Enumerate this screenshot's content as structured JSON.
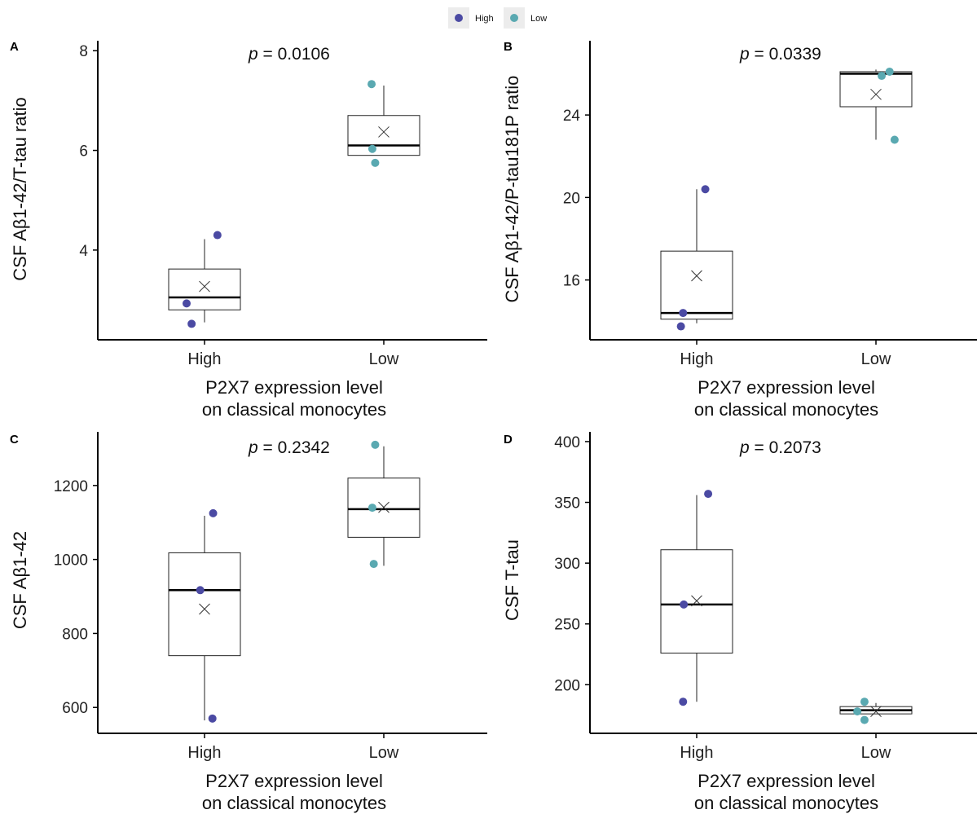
{
  "legend": {
    "entries": [
      {
        "label": "High",
        "color": "#4b4aa3"
      },
      {
        "label": "Low",
        "color": "#5aa9b1"
      }
    ]
  },
  "chart_data": [
    {
      "panel": "A",
      "type": "box",
      "categories": [
        "High",
        "Low"
      ],
      "xlabel": [
        "P2X7 expression level",
        "on classical monocytes"
      ],
      "ylabel": "CSF Aβ1-42/T-tau ratio",
      "p_label": "0.0106",
      "ylim": [
        2.2,
        8.2
      ],
      "yticks": [
        4,
        6,
        8
      ],
      "boxes": [
        {
          "category": "High",
          "whisker_low": 2.55,
          "q1": 2.8,
          "median": 3.05,
          "q3": 3.62,
          "whisker_high": 4.22,
          "mean": 3.27
        },
        {
          "category": "Low",
          "whisker_low": 5.9,
          "q1": 5.9,
          "median": 6.1,
          "q3": 6.7,
          "whisker_high": 7.3,
          "mean": 6.37
        }
      ],
      "points": [
        {
          "category": "High",
          "jitter": -0.25,
          "y": 2.93
        },
        {
          "category": "High",
          "jitter": -0.18,
          "y": 2.52
        },
        {
          "category": "High",
          "jitter": 0.18,
          "y": 4.3
        },
        {
          "category": "Low",
          "jitter": -0.17,
          "y": 7.33
        },
        {
          "category": "Low",
          "jitter": -0.16,
          "y": 6.03
        },
        {
          "category": "Low",
          "jitter": -0.12,
          "y": 5.75
        }
      ]
    },
    {
      "panel": "B",
      "type": "box",
      "categories": [
        "High",
        "Low"
      ],
      "xlabel": [
        "P2X7 expression level",
        "on classical monocytes"
      ],
      "ylabel": "CSF Aβ1-42/P-tau181P ratio",
      "p_label": "0.0339",
      "ylim": [
        13.1,
        27.6
      ],
      "yticks": [
        16,
        20,
        24
      ],
      "boxes": [
        {
          "category": "High",
          "whisker_low": 13.9,
          "q1": 14.1,
          "median": 14.4,
          "q3": 17.4,
          "whisker_high": 20.4,
          "mean": 16.2
        },
        {
          "category": "Low",
          "whisker_low": 22.8,
          "q1": 24.4,
          "median": 26.0,
          "q3": 26.1,
          "whisker_high": 26.2,
          "mean": 25.0
        }
      ],
      "points": [
        {
          "category": "High",
          "jitter": -0.22,
          "y": 13.75
        },
        {
          "category": "High",
          "jitter": -0.19,
          "y": 14.4
        },
        {
          "category": "High",
          "jitter": 0.12,
          "y": 20.4
        },
        {
          "category": "Low",
          "jitter": 0.08,
          "y": 25.9
        },
        {
          "category": "Low",
          "jitter": 0.19,
          "y": 26.1
        },
        {
          "category": "Low",
          "jitter": 0.26,
          "y": 22.8
        }
      ]
    },
    {
      "panel": "C",
      "type": "box",
      "categories": [
        "High",
        "Low"
      ],
      "xlabel": [
        "P2X7 expression level",
        "on classical monocytes"
      ],
      "ylabel": "CSF Aβ1-42",
      "p_label": "0.2342",
      "ylim": [
        530,
        1345
      ],
      "yticks": [
        600,
        800,
        1000,
        1200
      ],
      "boxes": [
        {
          "category": "High",
          "whisker_low": 565,
          "q1": 740,
          "median": 917,
          "q3": 1018,
          "whisker_high": 1118,
          "mean": 866
        },
        {
          "category": "Low",
          "whisker_low": 983,
          "q1": 1060,
          "median": 1136,
          "q3": 1220,
          "whisker_high": 1306,
          "mean": 1141
        }
      ],
      "points": [
        {
          "category": "High",
          "jitter": -0.06,
          "y": 917
        },
        {
          "category": "High",
          "jitter": 0.11,
          "y": 570
        },
        {
          "category": "High",
          "jitter": 0.12,
          "y": 1125
        },
        {
          "category": "Low",
          "jitter": -0.14,
          "y": 988
        },
        {
          "category": "Low",
          "jitter": -0.16,
          "y": 1140
        },
        {
          "category": "Low",
          "jitter": -0.12,
          "y": 1310
        }
      ]
    },
    {
      "panel": "D",
      "type": "box",
      "categories": [
        "High",
        "Low"
      ],
      "xlabel": [
        "P2X7 expression level",
        "on classical monocytes"
      ],
      "ylabel": "CSF T-tau",
      "p_label": "0.2073",
      "ylim": [
        160,
        408
      ],
      "yticks": [
        200,
        250,
        300,
        350,
        400
      ],
      "boxes": [
        {
          "category": "High",
          "whisker_low": 186,
          "q1": 226,
          "median": 266,
          "q3": 311,
          "whisker_high": 356,
          "mean": 269
        },
        {
          "category": "Low",
          "whisker_low": 176,
          "q1": 176,
          "median": 179,
          "q3": 182,
          "whisker_high": 185,
          "mean": 178
        }
      ],
      "points": [
        {
          "category": "High",
          "jitter": -0.19,
          "y": 186
        },
        {
          "category": "High",
          "jitter": -0.18,
          "y": 266
        },
        {
          "category": "High",
          "jitter": 0.16,
          "y": 357
        },
        {
          "category": "Low",
          "jitter": -0.26,
          "y": 178
        },
        {
          "category": "Low",
          "jitter": -0.16,
          "y": 171
        },
        {
          "category": "Low",
          "jitter": -0.16,
          "y": 186
        }
      ]
    }
  ]
}
